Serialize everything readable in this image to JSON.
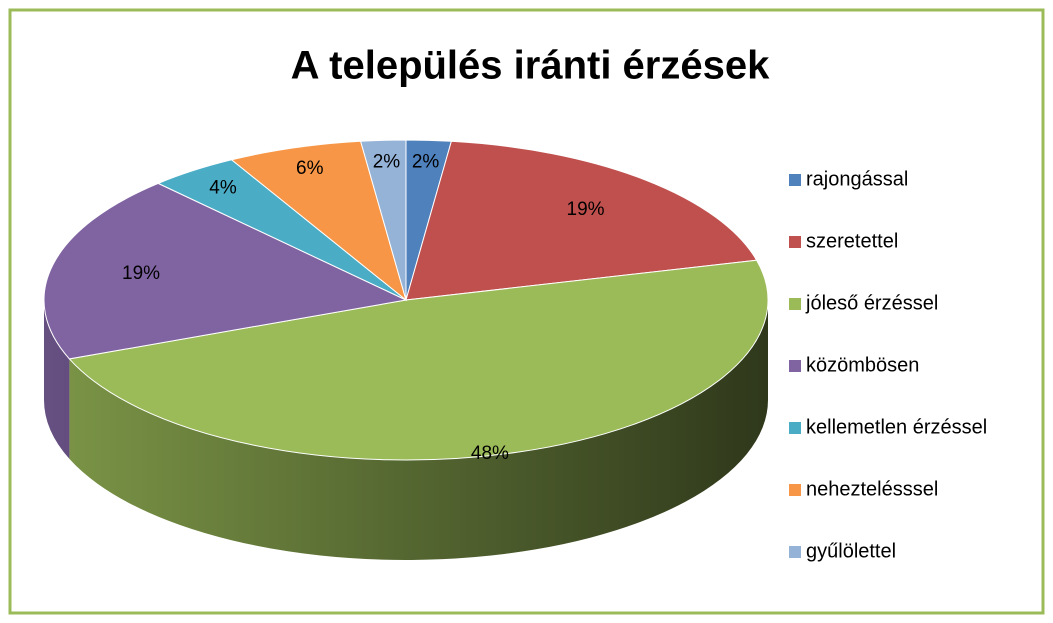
{
  "chart_data": {
    "type": "pie",
    "title": "A település iránti érzések",
    "categories": [
      "rajongással",
      "szeretettel",
      "jóleső érzéssel",
      "közömbösen",
      "kellemetlen érzéssel",
      "neheztelésssel",
      "gyűlölettel"
    ],
    "values": [
      2,
      19,
      48,
      19,
      4,
      6,
      2
    ],
    "value_labels": [
      "2%",
      "19%",
      "48%",
      "19%",
      "4%",
      "6%",
      "2%"
    ],
    "colors": [
      "#4f81bd",
      "#c0504d",
      "#9bbb59",
      "#8064a2",
      "#4bacc6",
      "#f79646",
      "#95b3d7"
    ],
    "legend": "right"
  }
}
